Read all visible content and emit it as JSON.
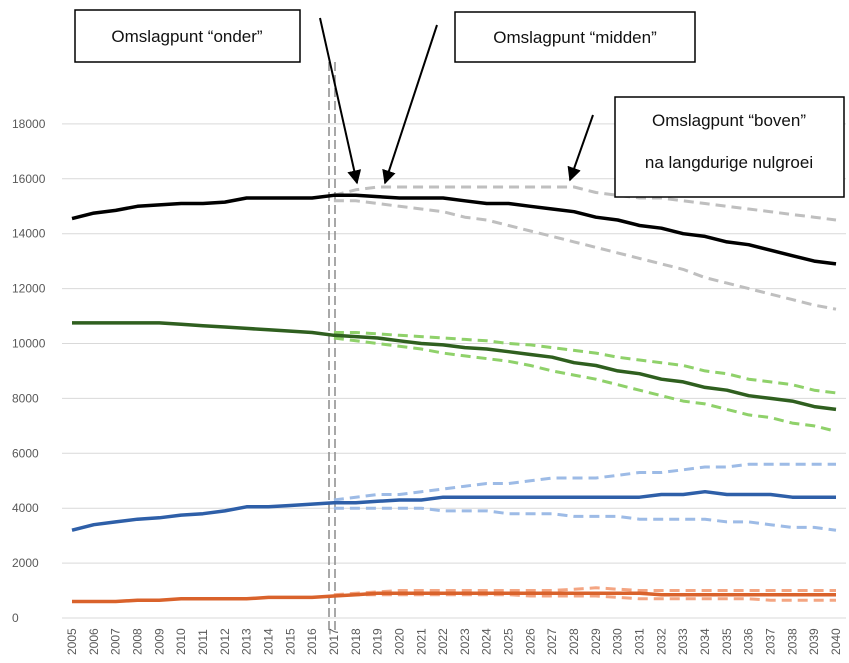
{
  "chart_data": {
    "type": "line",
    "categories": [
      "2005",
      "2006",
      "2007",
      "2008",
      "2009",
      "2010",
      "2011",
      "2012",
      "2013",
      "2014",
      "2015",
      "2016",
      "2017",
      "2018",
      "2019",
      "2020",
      "2021",
      "2022",
      "2023",
      "2024",
      "2025",
      "2026",
      "2027",
      "2028",
      "2029",
      "2030",
      "2031",
      "2032",
      "2033",
      "2034",
      "2035",
      "2036",
      "2037",
      "2038",
      "2039",
      "2040"
    ],
    "ylim": [
      0,
      20000
    ],
    "yticks": [
      0,
      2000,
      4000,
      6000,
      8000,
      10000,
      12000,
      14000,
      16000,
      18000
    ],
    "grid": true,
    "annotations": [
      "Omslagpunt “onder”",
      "Omslagpunt “midden”",
      "Omslagpunt “boven”",
      "na langdurige nulgroei"
    ],
    "series": [
      {
        "color": "#bfbfbf",
        "style": "dashed",
        "values": [
          null,
          null,
          null,
          null,
          null,
          null,
          null,
          null,
          null,
          null,
          null,
          null,
          15400,
          15600,
          15700,
          15700,
          15700,
          15700,
          15700,
          15700,
          15700,
          15700,
          15700,
          15700,
          15500,
          15400,
          15300,
          15300,
          15200,
          15100,
          15000,
          14900,
          14800,
          14700,
          14600,
          14500
        ]
      },
      {
        "color": "#bfbfbf",
        "style": "dashed",
        "values": [
          null,
          null,
          null,
          null,
          null,
          null,
          null,
          null,
          null,
          null,
          null,
          null,
          15200,
          15200,
          15100,
          15000,
          14900,
          14800,
          14600,
          14500,
          14300,
          14100,
          13900,
          13700,
          13500,
          13300,
          13100,
          12900,
          12700,
          12400,
          12200,
          12000,
          11800,
          11600,
          11400,
          11250
        ]
      },
      {
        "color": "#000000",
        "style": "solid",
        "values": [
          14550,
          14750,
          14850,
          15000,
          15050,
          15100,
          15100,
          15150,
          15300,
          15300,
          15300,
          15300,
          15400,
          15400,
          15350,
          15300,
          15300,
          15300,
          15200,
          15100,
          15100,
          15000,
          14900,
          14800,
          14600,
          14500,
          14300,
          14200,
          14000,
          13900,
          13700,
          13600,
          13400,
          13200,
          13000,
          12900
        ]
      },
      {
        "color": "#8fd16a",
        "style": "dashed",
        "values": [
          null,
          null,
          null,
          null,
          null,
          null,
          null,
          null,
          null,
          null,
          null,
          null,
          10400,
          10400,
          10350,
          10300,
          10250,
          10200,
          10150,
          10100,
          10000,
          9950,
          9850,
          9750,
          9650,
          9500,
          9400,
          9300,
          9200,
          9000,
          8900,
          8700,
          8600,
          8500,
          8300,
          8200
        ]
      },
      {
        "color": "#8fd16a",
        "style": "dashed",
        "values": [
          null,
          null,
          null,
          null,
          null,
          null,
          null,
          null,
          null,
          null,
          null,
          null,
          10200,
          10100,
          10000,
          9900,
          9800,
          9650,
          9550,
          9450,
          9350,
          9200,
          9000,
          8850,
          8700,
          8500,
          8300,
          8100,
          7900,
          7800,
          7600,
          7400,
          7300,
          7100,
          7000,
          6800
        ]
      },
      {
        "color": "#2f5f1f",
        "style": "solid",
        "values": [
          10750,
          10750,
          10750,
          10750,
          10750,
          10700,
          10650,
          10600,
          10550,
          10500,
          10450,
          10400,
          10300,
          10250,
          10200,
          10100,
          10000,
          9950,
          9850,
          9800,
          9700,
          9600,
          9500,
          9300,
          9200,
          9000,
          8900,
          8700,
          8600,
          8400,
          8300,
          8100,
          8000,
          7900,
          7700,
          7600
        ]
      },
      {
        "color": "#9dbbe6",
        "style": "dashed",
        "values": [
          null,
          null,
          null,
          null,
          null,
          null,
          null,
          null,
          null,
          null,
          null,
          null,
          4300,
          4400,
          4500,
          4500,
          4600,
          4700,
          4800,
          4900,
          4900,
          5000,
          5100,
          5100,
          5100,
          5200,
          5300,
          5300,
          5400,
          5500,
          5500,
          5600,
          5600,
          5600,
          5600,
          5600
        ]
      },
      {
        "color": "#9dbbe6",
        "style": "dashed",
        "values": [
          null,
          null,
          null,
          null,
          null,
          null,
          null,
          null,
          null,
          null,
          null,
          null,
          4000,
          4000,
          4000,
          4000,
          4000,
          3900,
          3900,
          3900,
          3800,
          3800,
          3800,
          3700,
          3700,
          3700,
          3600,
          3600,
          3600,
          3600,
          3500,
          3500,
          3400,
          3300,
          3300,
          3200
        ]
      },
      {
        "color": "#2e5fa8",
        "style": "solid",
        "values": [
          3200,
          3400,
          3500,
          3600,
          3650,
          3750,
          3800,
          3900,
          4050,
          4050,
          4100,
          4150,
          4200,
          4200,
          4250,
          4300,
          4300,
          4400,
          4400,
          4400,
          4400,
          4400,
          4400,
          4400,
          4400,
          4400,
          4400,
          4500,
          4500,
          4600,
          4500,
          4500,
          4500,
          4400,
          4400,
          4400
        ]
      },
      {
        "color": "#f4a582",
        "style": "dashed",
        "values": [
          null,
          null,
          null,
          null,
          null,
          null,
          null,
          null,
          null,
          null,
          null,
          null,
          850,
          900,
          950,
          1000,
          1000,
          1000,
          1000,
          1000,
          1000,
          1000,
          1000,
          1050,
          1100,
          1050,
          1000,
          1000,
          1000,
          1000,
          1000,
          1000,
          1000,
          1000,
          1000,
          1000
        ]
      },
      {
        "color": "#f4a582",
        "style": "dashed",
        "values": [
          null,
          null,
          null,
          null,
          null,
          null,
          null,
          null,
          null,
          null,
          null,
          null,
          800,
          850,
          850,
          850,
          850,
          850,
          850,
          850,
          850,
          800,
          800,
          800,
          800,
          750,
          700,
          700,
          700,
          700,
          700,
          700,
          650,
          650,
          650,
          650
        ]
      },
      {
        "color": "#d9622b",
        "style": "solid",
        "values": [
          600,
          600,
          600,
          650,
          650,
          700,
          700,
          700,
          700,
          750,
          750,
          750,
          800,
          850,
          900,
          900,
          900,
          900,
          900,
          900,
          900,
          900,
          900,
          900,
          900,
          900,
          900,
          850,
          850,
          850,
          850,
          850,
          850,
          850,
          850,
          850
        ]
      }
    ]
  }
}
